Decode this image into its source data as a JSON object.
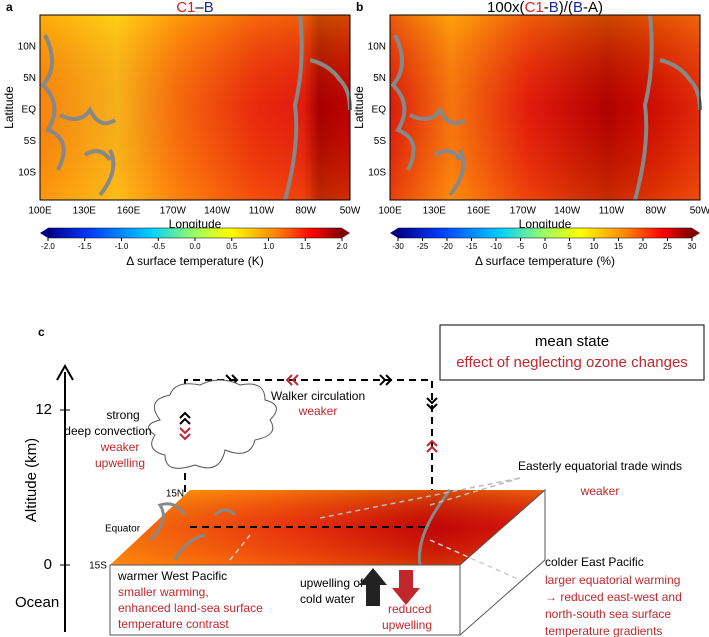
{
  "panels": {
    "a": {
      "label": "a",
      "title_parts": [
        {
          "text": "C1",
          "color": "#d62020"
        },
        {
          "text": "–",
          "color": "#000000"
        },
        {
          "text": "B",
          "color": "#1a2a9a"
        }
      ],
      "y_label": "Latitude",
      "x_label": "Longitude",
      "yticks": [
        "10N",
        "5N",
        "EQ",
        "5S",
        "10S"
      ],
      "xticks": [
        "100E",
        "130E",
        "160E",
        "170W",
        "140W",
        "110W",
        "80W",
        "50W"
      ],
      "colorbar_label": "Δ surface temperature (K)",
      "colorbar_lim": [
        -2,
        2
      ],
      "colorbar_ticks": [
        {
          "value": -2,
          "label": "-2.0"
        },
        {
          "value": -1.5,
          "label": "-1.5"
        },
        {
          "value": -1,
          "label": "-1.0"
        },
        {
          "value": -0.5,
          "label": "-0.5"
        },
        {
          "value": 0,
          "label": "0.0"
        },
        {
          "value": 0.5,
          "label": "0.5"
        },
        {
          "value": 1,
          "label": "1.0"
        },
        {
          "value": 1.5,
          "label": "1.5"
        },
        {
          "value": 2,
          "label": "2.0"
        }
      ]
    },
    "b": {
      "label": "b",
      "title_parts": [
        {
          "text": "100x(",
          "color": "#000000"
        },
        {
          "text": "C1",
          "color": "#d62020"
        },
        {
          "text": "-",
          "color": "#000000"
        },
        {
          "text": "B",
          "color": "#1a2a9a"
        },
        {
          "text": ")/(",
          "color": "#000000"
        },
        {
          "text": "B",
          "color": "#1a2a9a"
        },
        {
          "text": "-A)",
          "color": "#000000"
        }
      ],
      "y_label": "Latitude",
      "x_label": "Longitude",
      "yticks": [
        "10N",
        "5N",
        "EQ",
        "5S",
        "10S"
      ],
      "xticks": [
        "100E",
        "130E",
        "160E",
        "170W",
        "140W",
        "110W",
        "80W",
        "50W"
      ],
      "colorbar_label": "Δ surface temperature (%)",
      "colorbar_lim": [
        -30,
        30
      ],
      "colorbar_ticks": [
        -30,
        -25,
        -20,
        -15,
        -10,
        -5,
        0,
        5,
        10,
        15,
        20,
        25,
        30
      ]
    },
    "c": {
      "label": "c",
      "y_label": "Altitude (km)",
      "yticks": [
        "12",
        "0"
      ],
      "ocean": "Ocean",
      "legend_black": "mean state",
      "legend_red": "effect of  neglecting ozone changes",
      "convection": [
        "strong",
        "deep convection"
      ],
      "convection_red": [
        "weaker",
        "upwelling"
      ],
      "walker": "Walker circulation",
      "walker_red": "weaker",
      "trade": "Easterly equatorial trade winds",
      "trade_red": "weaker",
      "lat_15n": "15N",
      "equator": "Equator",
      "lat_15s": "15S",
      "west": "warmer West Pacific",
      "west_red": [
        "smaller warming,",
        "enhanced land-sea surface",
        "temperature contrast"
      ],
      "upwelling": [
        "upwelling of",
        "cold water"
      ],
      "upwelling_red": [
        "reduced",
        "upwelling"
      ],
      "east": "colder East Pacific",
      "east_red": [
        "larger equatorial warming",
        "→ reduced east-west and",
        "north-south sea surface",
        "temperature gradients"
      ]
    }
  }
}
